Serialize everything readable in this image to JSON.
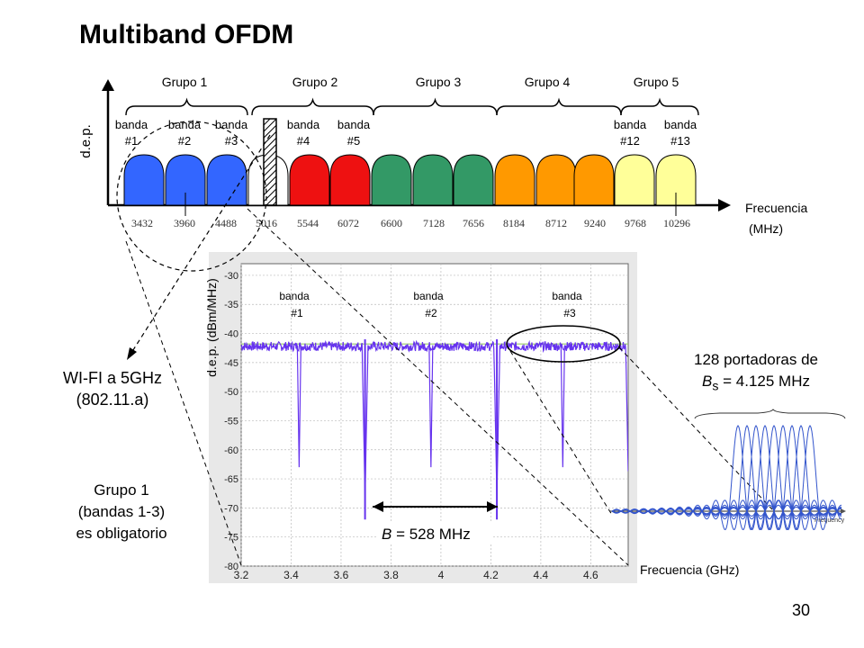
{
  "slide": {
    "title": "Multiband OFDM",
    "page_number": "30"
  },
  "band_diagram": {
    "y_label": "d.e.p.",
    "x_label_line1": "Frecuencia",
    "x_label_line2": "(MHz)",
    "groups": [
      "Grupo 1",
      "Grupo 2",
      "Grupo 3",
      "Grupo 4",
      "Grupo 5"
    ],
    "band_labels": [
      {
        "word": "banda",
        "num": "#1"
      },
      {
        "word": "banda",
        "num": "#2"
      },
      {
        "word": "banda",
        "num": "#3"
      },
      {
        "word": "banda",
        "num": "#4"
      },
      {
        "word": "banda",
        "num": "#5"
      },
      {
        "word": "banda",
        "num": "#12"
      },
      {
        "word": "banda",
        "num": "#13"
      }
    ],
    "frequency_ticks": [
      "3432",
      "3960",
      "4488",
      "5016",
      "5544",
      "6072",
      "6600",
      "7128",
      "7656",
      "8184",
      "8712",
      "9240",
      "9768",
      "10296"
    ],
    "band_colors": [
      "#3366ff",
      "#3366ff",
      "#3366ff",
      "#ffffff",
      "#ee1111",
      "#ee1111",
      "#339966",
      "#339966",
      "#339966",
      "#ff9900",
      "#ff9900",
      "#ff9900",
      "#ffff99",
      "#ffff99"
    ]
  },
  "chart_data": {
    "type": "line",
    "xlabel": "",
    "ylabel": "d.e.p.  (dBm/MHz)",
    "xlim": [
      3.2,
      4.75
    ],
    "ylim": [
      -80,
      -28
    ],
    "x_ticks": [
      "3.2",
      "3.4",
      "3.6",
      "3.8",
      "4",
      "4.2",
      "4.4",
      "4.6"
    ],
    "y_ticks": [
      "-30",
      "-35",
      "-40",
      "-45",
      "-50",
      "-55",
      "-60",
      "-65",
      "-70",
      "-75",
      "-80"
    ],
    "band_annotations": [
      {
        "word": "banda",
        "num": "#1"
      },
      {
        "word": "banda",
        "num": "#2"
      },
      {
        "word": "banda",
        "num": "#3"
      }
    ],
    "series": [
      {
        "band_center_ghz": [
          3.432,
          3.96,
          4.488
        ],
        "band_width_ghz": 0.528,
        "level_dbm_mhz": -42,
        "floor_dbm_mhz": -72
      }
    ],
    "bandwidth_annotation": "B = 528 MHz",
    "grid": true
  },
  "notes": {
    "wifi_line1": "WI-FI a 5GHz",
    "wifi_line2": "(802.11.a)",
    "group1_line1": "Grupo 1",
    "group1_line2": "(bandas 1-3)",
    "group1_line3": "es obligatorio",
    "carriers_line1": "128 portadoras de",
    "carriers_line2_sym": "B",
    "carriers_line2_sub": "s",
    "carriers_line2_rest": " = 4.125 MHz",
    "freq_ghz_label": "Frecuencia (GHz)",
    "inset_axis_label": "Frequency"
  },
  "colors": {
    "psd_trace": "#6633ee",
    "ofdm_carriers": "#3355cc",
    "reference_line": "#99cc66"
  }
}
